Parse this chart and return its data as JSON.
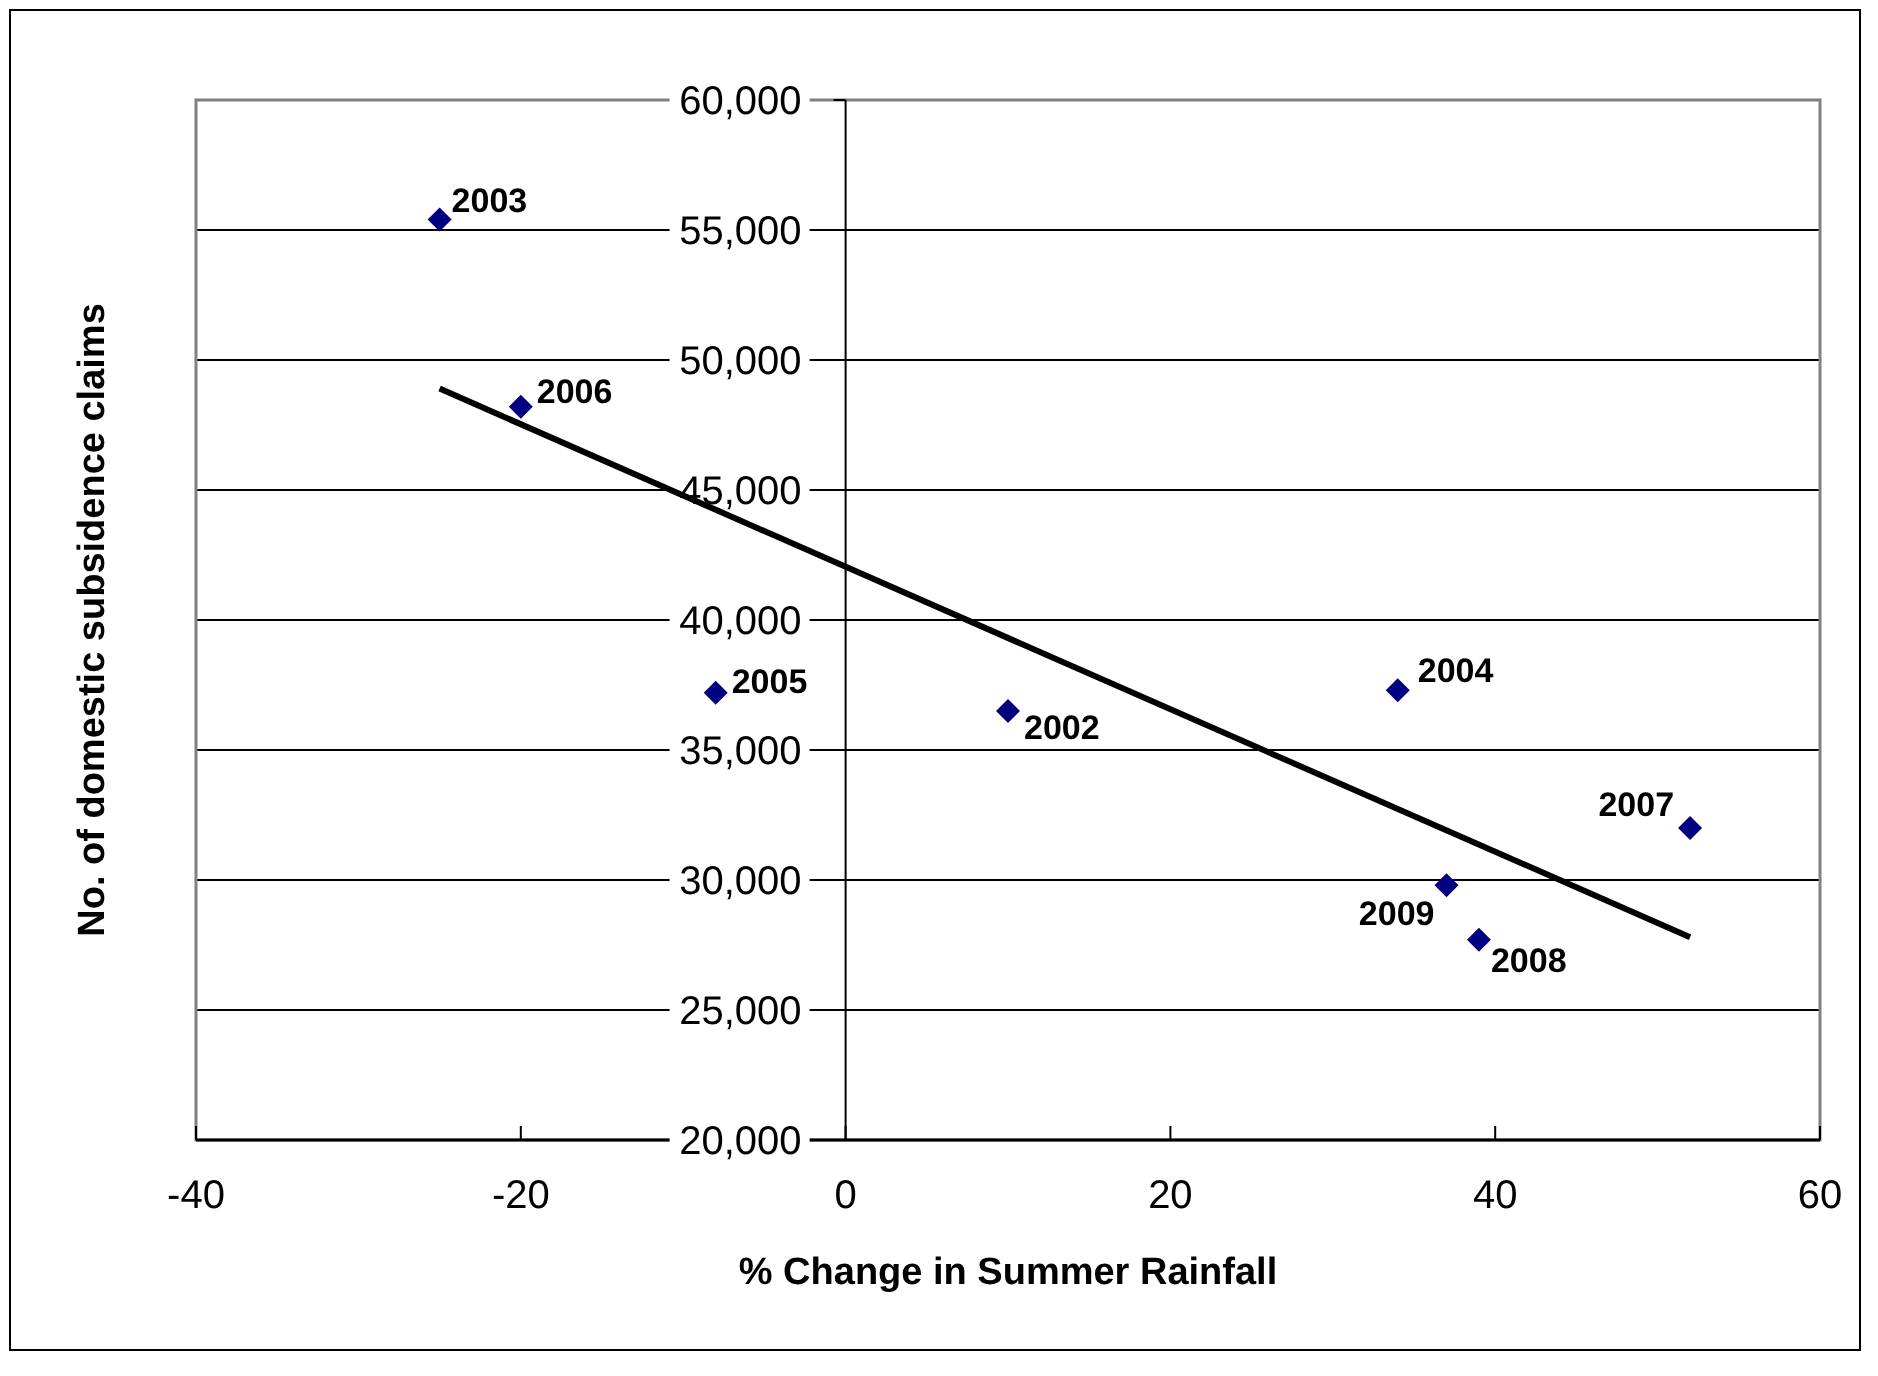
{
  "chart_data": {
    "type": "scatter",
    "xlabel": "% Change in Summer Rainfall",
    "ylabel": "No. of domestic subsidence claims",
    "xlim": [
      -40,
      60
    ],
    "xticks": [
      -40,
      -20,
      0,
      20,
      40,
      60
    ],
    "ylim": [
      20000,
      60000
    ],
    "yticks": [
      {
        "value": 20000,
        "label": "20,000"
      },
      {
        "value": 25000,
        "label": "25,000"
      },
      {
        "value": 30000,
        "label": "30,000"
      },
      {
        "value": 35000,
        "label": "35,000"
      },
      {
        "value": 40000,
        "label": "40,000"
      },
      {
        "value": 45000,
        "label": "45,000"
      },
      {
        "value": 50000,
        "label": "50,000"
      },
      {
        "value": 55000,
        "label": "55,000"
      },
      {
        "value": 60000,
        "label": "60,000"
      }
    ],
    "grid": "y",
    "marker": "diamond",
    "series": [
      {
        "type": "scatter",
        "color": "#000080",
        "x": [
          10,
          -25,
          34,
          -8,
          -20,
          52,
          39,
          37
        ],
        "values": [
          36500,
          55400,
          37300,
          37200,
          48200,
          32000,
          27700,
          29800
        ]
      },
      {
        "type": "line",
        "color": "#000000",
        "line_style": "solid",
        "marker": "none",
        "x": [
          -25,
          52
        ],
        "values": [
          48900,
          27800
        ]
      }
    ],
    "annotations": [
      {
        "text": "2002",
        "x": 10,
        "y": 36500
      },
      {
        "text": "2003",
        "x": -25,
        "y": 55400
      },
      {
        "text": "2004",
        "x": 34,
        "y": 37300
      },
      {
        "text": "2005",
        "x": -8,
        "y": 37200
      },
      {
        "text": "2006",
        "x": -20,
        "y": 48200
      },
      {
        "text": "2007",
        "x": 52,
        "y": 32000
      },
      {
        "text": "2008",
        "x": 39,
        "y": 27700
      },
      {
        "text": "2009",
        "x": 37,
        "y": 29800
      }
    ]
  }
}
